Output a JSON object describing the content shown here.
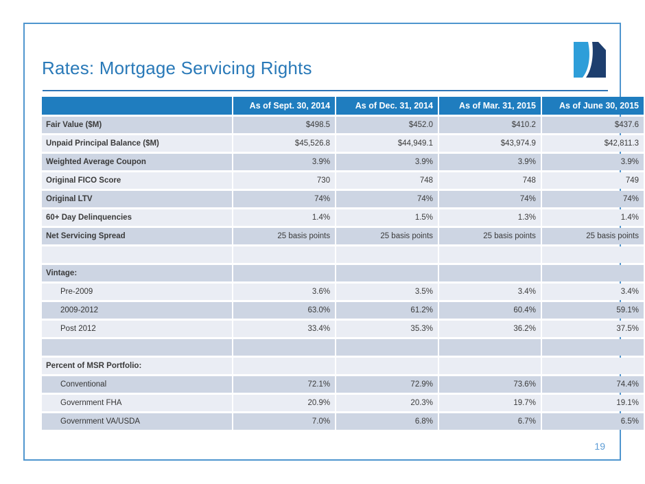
{
  "slide": {
    "title": "Rates: Mortgage Servicing Rights",
    "page_number": "19"
  },
  "colors": {
    "title_blue": "#2979B8",
    "header_bg": "#1F7DBF",
    "row_dark": "#CDD5E3",
    "row_light": "#EAEDF4",
    "frame_border": "#4E95CE",
    "title_rule": "#2E74B5",
    "page_number": "#5B9BD5",
    "logo_light_blue": "#2E9ED9",
    "logo_navy": "#1D3E6E"
  },
  "table": {
    "columns": [
      "",
      "As of Sept. 30, 2014",
      "As of Dec. 31, 2014",
      "As of Mar. 31, 2015",
      "As of June 30, 2015"
    ],
    "rows": [
      {
        "label": "Fair Value ($M)",
        "style": "bold",
        "values": [
          "$498.5",
          "$452.0",
          "$410.2",
          "$437.6"
        ]
      },
      {
        "label": "Unpaid Principal Balance ($M)",
        "style": "bold",
        "values": [
          "$45,526.8",
          "$44,949.1",
          "$43,974.9",
          "$42,811.3"
        ]
      },
      {
        "label": "Weighted Average Coupon",
        "style": "bold",
        "values": [
          "3.9%",
          "3.9%",
          "3.9%",
          "3.9%"
        ]
      },
      {
        "label": "Original FICO Score",
        "style": "bold",
        "values": [
          "730",
          "748",
          "748",
          "749"
        ]
      },
      {
        "label": "Original LTV",
        "style": "bold",
        "values": [
          "74%",
          "74%",
          "74%",
          "74%"
        ]
      },
      {
        "label": "60+ Day Delinquencies",
        "style": "bold",
        "values": [
          "1.4%",
          "1.5%",
          "1.3%",
          "1.4%"
        ]
      },
      {
        "label": "Net Servicing Spread",
        "style": "bold",
        "values": [
          "25 basis points",
          "25 basis points",
          "25 basis points",
          "25 basis points"
        ]
      },
      {
        "label": "",
        "style": "blank",
        "values": [
          "",
          "",
          "",
          ""
        ]
      },
      {
        "label": "Vintage:",
        "style": "bold",
        "values": [
          "",
          "",
          "",
          ""
        ]
      },
      {
        "label": "Pre-2009",
        "style": "indent",
        "values": [
          "3.6%",
          "3.5%",
          "3.4%",
          "3.4%"
        ]
      },
      {
        "label": "2009-2012",
        "style": "indent",
        "values": [
          "63.0%",
          "61.2%",
          "60.4%",
          "59.1%"
        ]
      },
      {
        "label": "Post 2012",
        "style": "indent",
        "values": [
          "33.4%",
          "35.3%",
          "36.2%",
          "37.5%"
        ]
      },
      {
        "label": "",
        "style": "blank",
        "values": [
          "",
          "",
          "",
          ""
        ]
      },
      {
        "label": "Percent of MSR Portfolio:",
        "style": "bold",
        "values": [
          "",
          "",
          "",
          ""
        ]
      },
      {
        "label": "Conventional",
        "style": "indent",
        "values": [
          "72.1%",
          "72.9%",
          "73.6%",
          "74.4%"
        ]
      },
      {
        "label": "Government FHA",
        "style": "indent",
        "values": [
          "20.9%",
          "20.3%",
          "19.7%",
          "19.1%"
        ]
      },
      {
        "label": "Government VA/USDA",
        "style": "indent",
        "values": [
          "7.0%",
          "6.8%",
          "6.7%",
          "6.5%"
        ]
      }
    ]
  }
}
